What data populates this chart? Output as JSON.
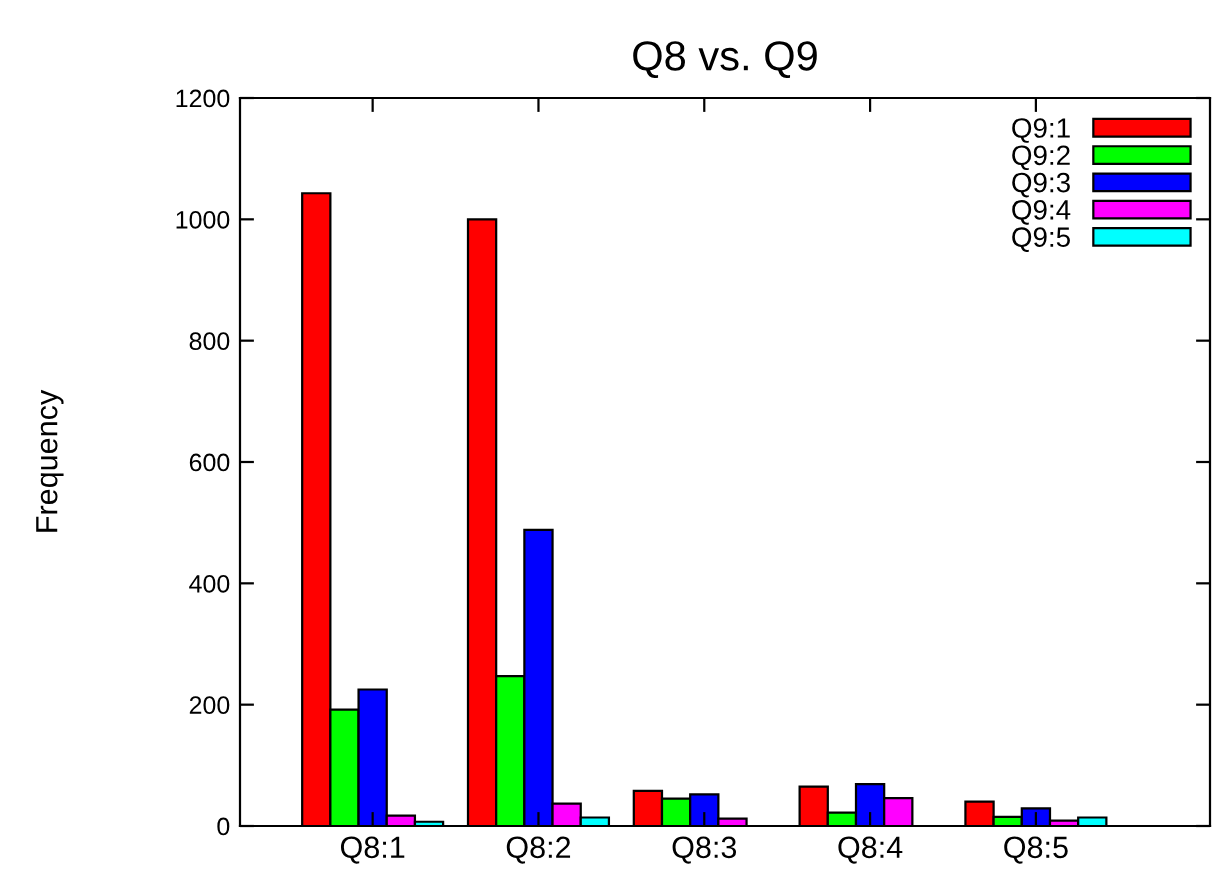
{
  "chart_data": {
    "type": "bar",
    "title": "Q8 vs. Q9",
    "ylabel": "Frequency",
    "categories": [
      "Q8:1",
      "Q8:2",
      "Q8:3",
      "Q8:4",
      "Q8:5"
    ],
    "series": [
      {
        "name": "Q9:1",
        "color": "#ff0000",
        "values": [
          1043,
          1000,
          58,
          65,
          40
        ]
      },
      {
        "name": "Q9:2",
        "color": "#00ff00",
        "values": [
          192,
          247,
          45,
          22,
          15
        ]
      },
      {
        "name": "Q9:3",
        "color": "#0000ff",
        "values": [
          225,
          488,
          52,
          69,
          29
        ]
      },
      {
        "name": "Q9:4",
        "color": "#ff00ff",
        "values": [
          17,
          37,
          12,
          46,
          9
        ]
      },
      {
        "name": "Q9:5",
        "color": "#00ffff",
        "values": [
          7,
          14,
          null,
          null,
          14
        ]
      }
    ],
    "ylim": [
      0,
      1200
    ],
    "yticks": [
      0,
      200,
      400,
      600,
      800,
      1000,
      1200
    ],
    "grid": false,
    "legend": "top right"
  }
}
